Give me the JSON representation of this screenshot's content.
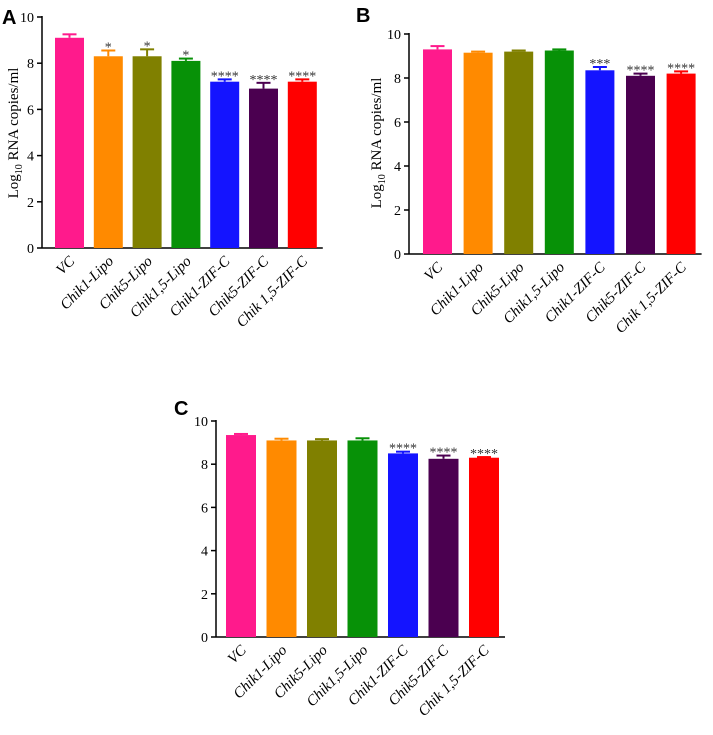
{
  "chart_data": [
    {
      "panel": "A",
      "type": "bar",
      "title": "",
      "ylabel": {
        "prefix": "Log",
        "sub": "10",
        "suffix": " RNA copies/ml"
      },
      "xlabel": "",
      "ylim": [
        0,
        10
      ],
      "yticks": [
        0,
        2,
        4,
        6,
        8,
        10
      ],
      "categories": [
        "VC",
        "Chik1-Lipo",
        "Chik5-Lipo",
        "Chik1,5-Lipo",
        "Chik1-ZIF-C",
        "Chik5-ZIF-C",
        "Chik 1,5-ZIF-C"
      ],
      "values": [
        9.1,
        8.3,
        8.3,
        8.1,
        7.2,
        6.9,
        7.2
      ],
      "errors": [
        0.15,
        0.25,
        0.3,
        0.1,
        0.1,
        0.25,
        0.1
      ],
      "significance": [
        "",
        "*",
        "*",
        "*",
        "****",
        "****",
        "****"
      ],
      "colors": [
        "#ff1a8c",
        "#ff8a00",
        "#808000",
        "#079107",
        "#1414ff",
        "#4b0050",
        "#ff0000"
      ]
    },
    {
      "panel": "B",
      "type": "bar",
      "title": "",
      "ylabel": {
        "prefix": "Log",
        "sub": "10",
        "suffix": " RNA copies/ml"
      },
      "xlabel": "",
      "ylim": [
        0,
        10
      ],
      "yticks": [
        0,
        2,
        4,
        6,
        8,
        10
      ],
      "categories": [
        "VC",
        "Chik1-Lipo",
        "Chik5-Lipo",
        "Chik1,5-Lipo",
        "Chik1-ZIF-C",
        "Chik5-ZIF-C",
        "Chik 1,5-ZIF-C"
      ],
      "values": [
        9.3,
        9.15,
        9.2,
        9.25,
        8.35,
        8.1,
        8.2
      ],
      "errors": [
        0.15,
        0.05,
        0.05,
        0.05,
        0.15,
        0.1,
        0.1
      ],
      "significance": [
        "",
        "",
        "",
        "",
        "***",
        "****",
        "****"
      ],
      "colors": [
        "#ff1a8c",
        "#ff8a00",
        "#808000",
        "#079107",
        "#1414ff",
        "#4b0050",
        "#ff0000"
      ]
    },
    {
      "panel": "C",
      "type": "bar",
      "title": "",
      "ylabel": "",
      "xlabel": "",
      "ylim": [
        0,
        10
      ],
      "yticks": [
        0,
        2,
        4,
        6,
        8,
        10
      ],
      "categories": [
        "VC",
        "Chik1-Lipo",
        "Chik5-Lipo",
        "Chik1,5-Lipo",
        "Chik1-ZIF-C",
        "Chik5-ZIF-C",
        "Chik 1,5-ZIF-C"
      ],
      "values": [
        9.35,
        9.1,
        9.1,
        9.1,
        8.5,
        8.25,
        8.3
      ],
      "errors": [
        0.05,
        0.08,
        0.06,
        0.1,
        0.08,
        0.15,
        0.03
      ],
      "significance": [
        "",
        "",
        "",
        "",
        "****",
        "****",
        "****"
      ],
      "colors": [
        "#ff1a8c",
        "#ff8a00",
        "#808000",
        "#079107",
        "#1414ff",
        "#4b0050",
        "#ff0000"
      ]
    }
  ]
}
